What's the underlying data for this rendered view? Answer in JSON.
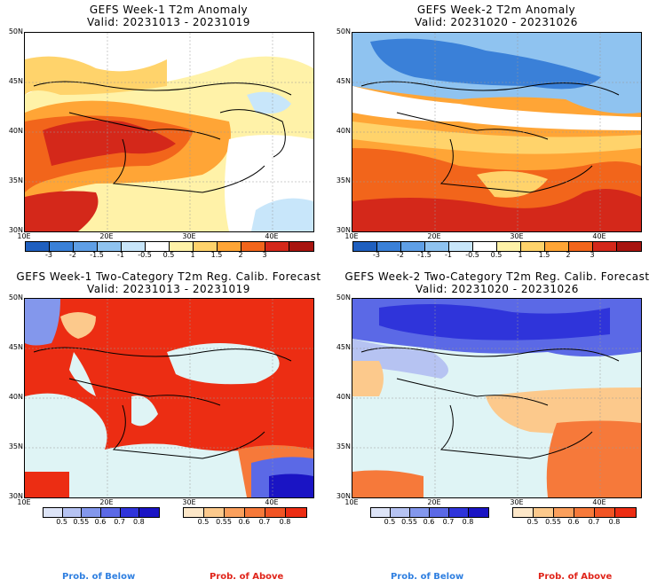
{
  "panels": [
    {
      "title": "GEFS Week-1 T2m Anomaly",
      "valid": "Valid: 20231013 - 20231019"
    },
    {
      "title": "GEFS Week-2 T2m Anomaly",
      "valid": "Valid: 20231020 - 20231026"
    },
    {
      "title": "GEFS Week-1 Two-Category T2m Reg. Calib. Forecast",
      "valid": "Valid: 20231013 - 20231019"
    },
    {
      "title": "GEFS Week-2 Two-Category T2m Reg. Calib. Forecast",
      "valid": "Valid: 20231020 - 20231026"
    }
  ],
  "lat_labels": [
    "50N",
    "45N",
    "40N",
    "35N",
    "30N"
  ],
  "lon_labels": [
    "10E",
    "20E",
    "30E",
    "40E"
  ],
  "anomaly_colorbar": {
    "labels": [
      "-3",
      "-2",
      "-1.5",
      "-1",
      "-0.5",
      "0.5",
      "1",
      "1.5",
      "2",
      "3"
    ],
    "colors": [
      "#1f5fbf",
      "#3a80d8",
      "#5f9fe6",
      "#8fc3f0",
      "#c8e6fa",
      "#ffffff",
      "#fff2a8",
      "#ffd36b",
      "#ffa536",
      "#f2651b",
      "#d4281a",
      "#a8140f"
    ]
  },
  "prob_below_colorbar": {
    "labels": [
      "0.5",
      "0.55",
      "0.6",
      "0.7",
      "0.8"
    ],
    "colors": [
      "#dde4f7",
      "#b6c3f2",
      "#8397ec",
      "#5b69e6",
      "#2f34da",
      "#1a14c4"
    ]
  },
  "prob_above_colorbar": {
    "labels": [
      "0.5",
      "0.55",
      "0.6",
      "0.7",
      "0.8"
    ],
    "colors": [
      "#fde7c8",
      "#fcc98c",
      "#fa9f5c",
      "#f6793a",
      "#f15424",
      "#ec2d13"
    ]
  },
  "labels": {
    "prob_below": "Prob. of Below",
    "prob_above": "Prob. of Above"
  },
  "colors": {
    "prob_below_text": "#2f7fe0",
    "prob_above_text": "#e0241a",
    "sea": "#dff4f5"
  }
}
